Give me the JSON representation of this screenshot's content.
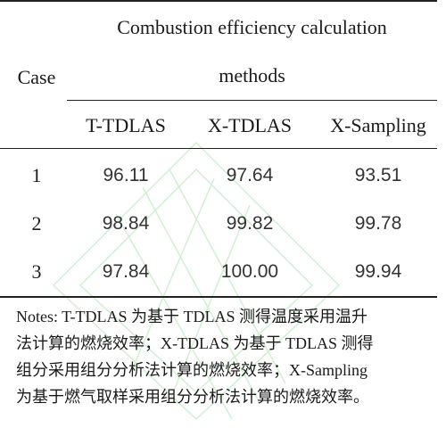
{
  "table": {
    "case_header": "Case",
    "group_header_line1": "Combustion efficiency calculation",
    "group_header_line2": "methods",
    "columns": [
      "T-TDLAS",
      "X-TDLAS",
      "X-Sampling"
    ],
    "rows": [
      {
        "case": "1",
        "values": [
          "96.11",
          "97.64",
          "93.51"
        ]
      },
      {
        "case": "2",
        "values": [
          "98.84",
          "99.82",
          "99.78"
        ]
      },
      {
        "case": "3",
        "values": [
          "97.84",
          "100.00",
          "99.94"
        ]
      }
    ]
  },
  "notes": {
    "lines": [
      "Notes: T-TDLAS 为基于 TDLAS 测得温度采用温升",
      "法计算的燃烧效率；X-TDLAS 为基于 TDLAS 测得",
      "组分采用组分分析法计算的燃烧效率；X-Sampling",
      "为基于燃气取样采用组分分析法计算的燃烧效率。"
    ]
  },
  "colors": {
    "watermark": "#7fd17f",
    "rule": "#222222"
  }
}
